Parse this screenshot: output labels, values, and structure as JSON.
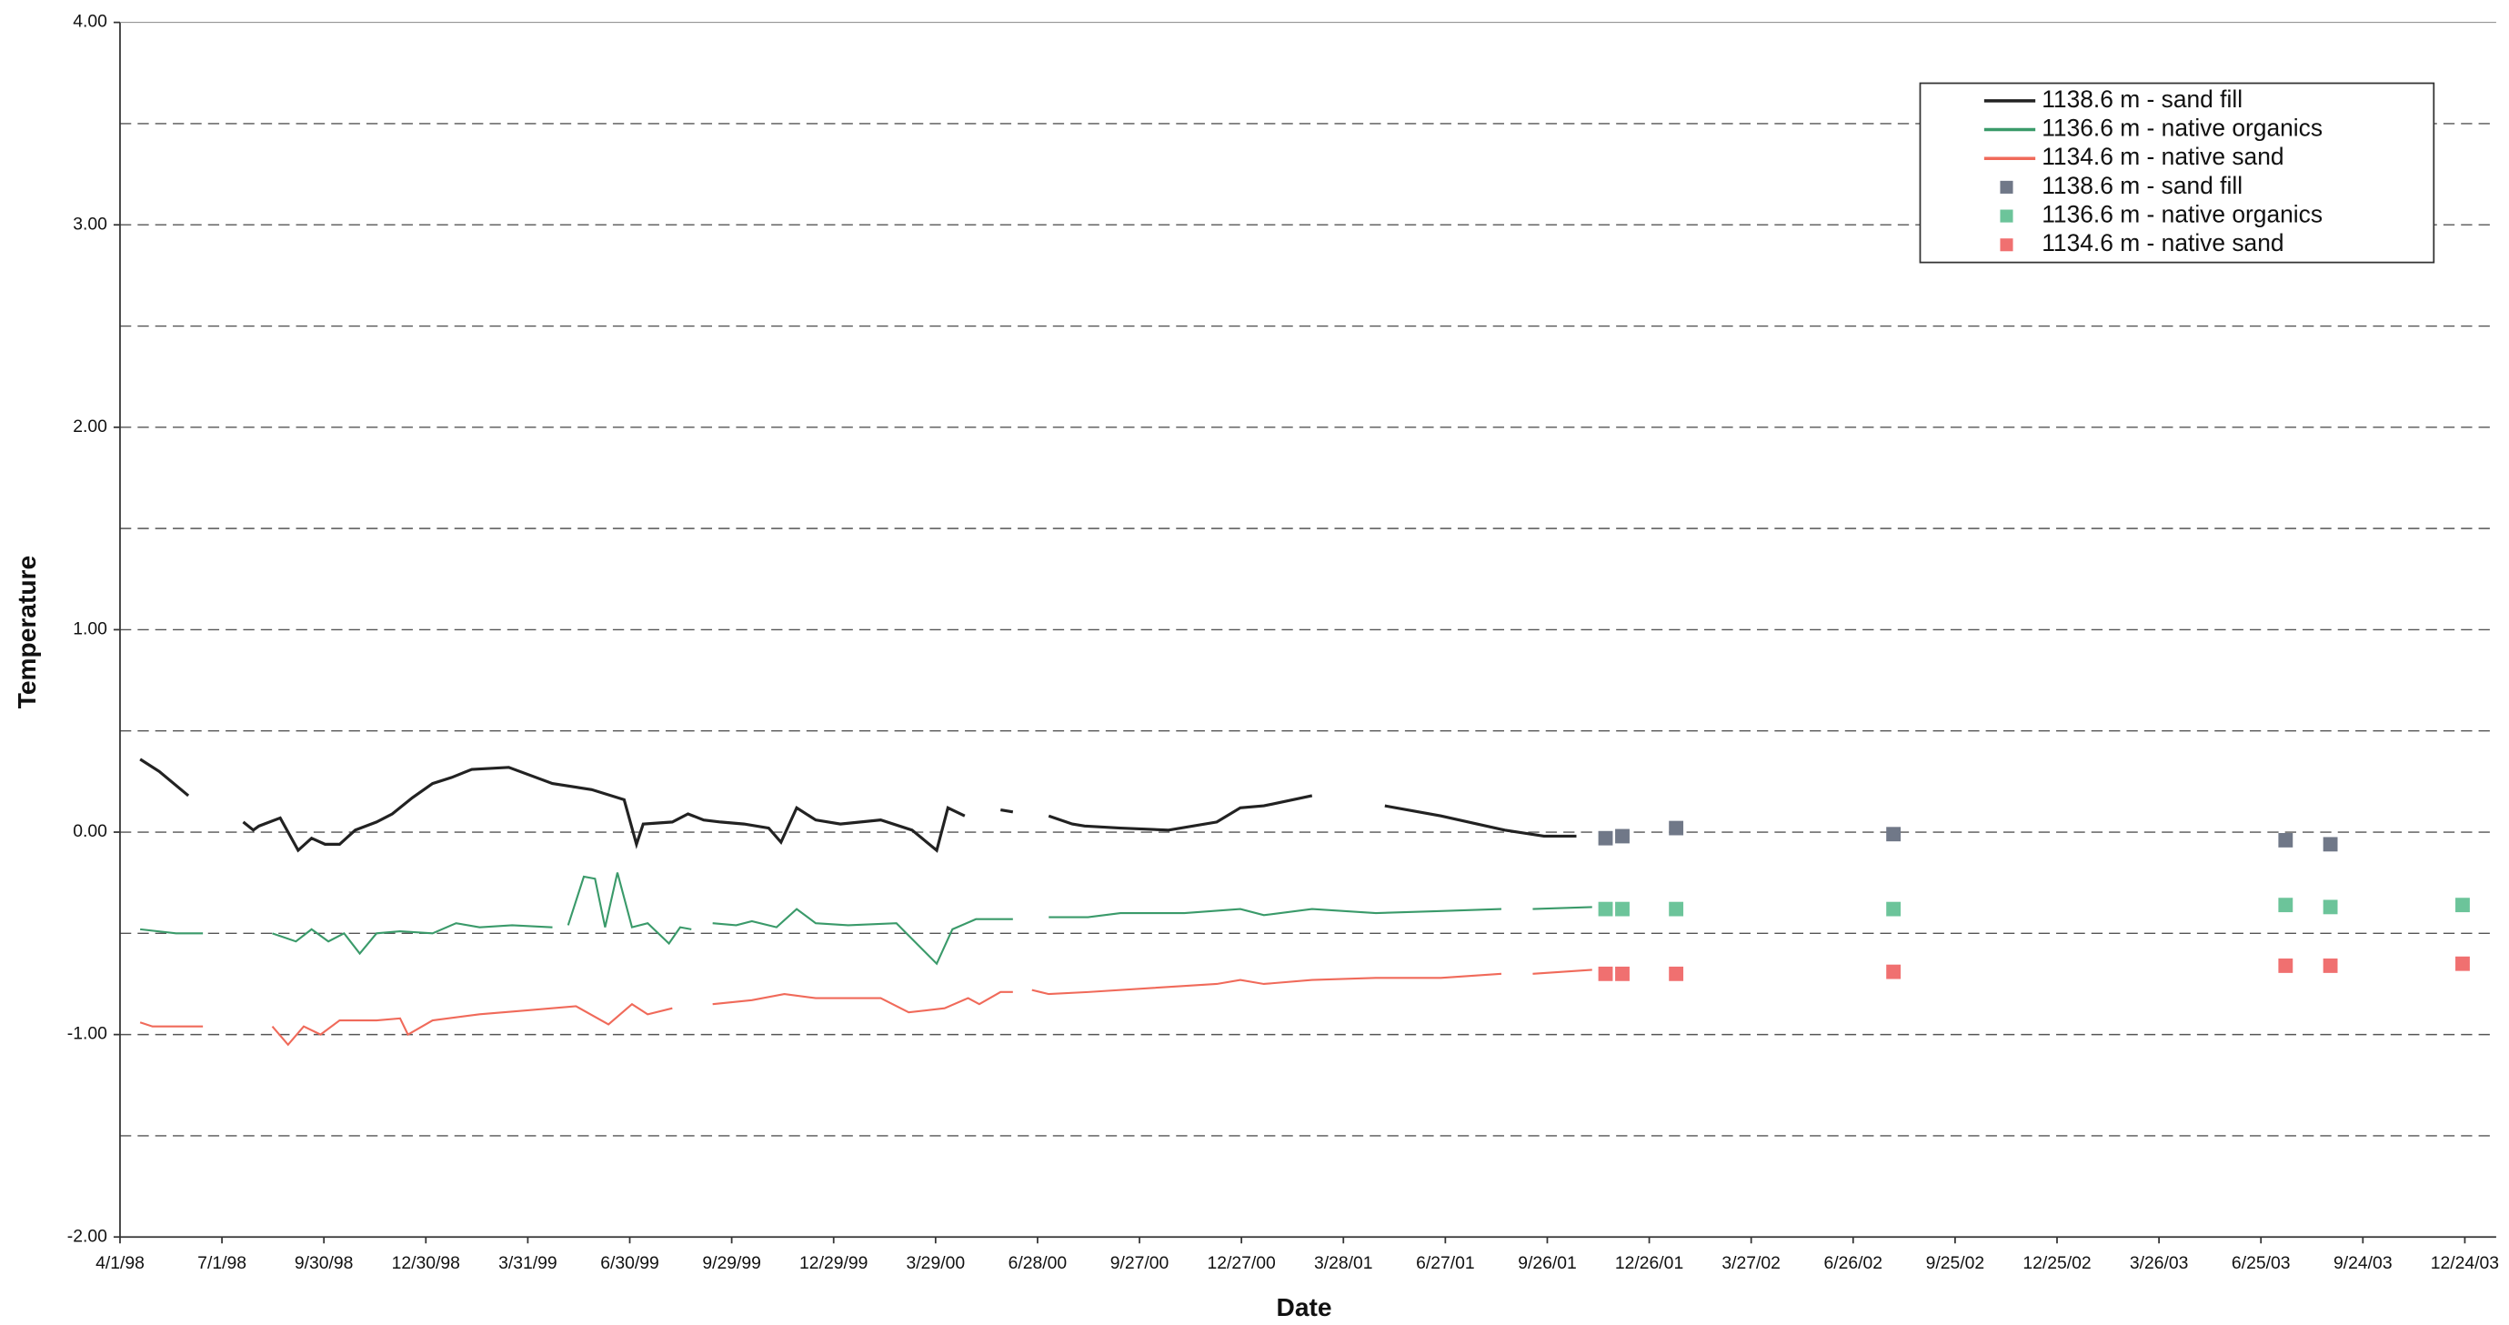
{
  "chart_data": {
    "type": "line",
    "x_label": "Date",
    "y_label": "Temperature",
    "legend": "top-right",
    "xlim": [
      "1998-04-01",
      "2004-01-21"
    ],
    "ylim": [
      -2,
      4
    ],
    "xticks": [
      {
        "value": "1998-04-01",
        "label": "4/1/98"
      },
      {
        "value": "1998-07-01",
        "label": "7/1/98"
      },
      {
        "value": "1998-09-30",
        "label": "9/30/98"
      },
      {
        "value": "1998-12-30",
        "label": "12/30/98"
      },
      {
        "value": "1999-03-31",
        "label": "3/31/99"
      },
      {
        "value": "1999-06-30",
        "label": "6/30/99"
      },
      {
        "value": "1999-09-29",
        "label": "9/29/99"
      },
      {
        "value": "1999-12-29",
        "label": "12/29/99"
      },
      {
        "value": "2000-03-29",
        "label": "3/29/00"
      },
      {
        "value": "2000-06-28",
        "label": "6/28/00"
      },
      {
        "value": "2000-09-27",
        "label": "9/27/00"
      },
      {
        "value": "2000-12-27",
        "label": "12/27/00"
      },
      {
        "value": "2001-03-28",
        "label": "3/28/01"
      },
      {
        "value": "2001-06-27",
        "label": "6/27/01"
      },
      {
        "value": "2001-09-26",
        "label": "9/26/01"
      },
      {
        "value": "2001-12-26",
        "label": "12/26/01"
      },
      {
        "value": "2002-03-27",
        "label": "3/27/02"
      },
      {
        "value": "2002-06-26",
        "label": "6/26/02"
      },
      {
        "value": "2002-09-25",
        "label": "9/25/02"
      },
      {
        "value": "2002-12-25",
        "label": "12/25/02"
      },
      {
        "value": "2003-03-26",
        "label": "3/26/03"
      },
      {
        "value": "2003-06-25",
        "label": "6/25/03"
      },
      {
        "value": "2003-09-24",
        "label": "9/24/03"
      },
      {
        "value": "2003-12-24",
        "label": "12/24/03"
      }
    ],
    "yticks": [
      {
        "value": -2,
        "label": "-2.00"
      },
      {
        "value": -1,
        "label": "-1.00"
      },
      {
        "value": 0,
        "label": "0.00"
      },
      {
        "value": 1,
        "label": "1.00"
      },
      {
        "value": 2,
        "label": "2.00"
      },
      {
        "value": 3,
        "label": "3.00"
      },
      {
        "value": 4,
        "label": "4.00"
      }
    ],
    "y_minor_ticks": [
      -1.5,
      -0.5,
      0.5,
      1.5,
      2.5,
      3.5
    ],
    "grid": true,
    "series": [
      {
        "name": "1138.6 m - sand fill",
        "type": "line",
        "color": "#222222",
        "x": [
          "1998-04-19",
          "1998-05-06",
          "1998-06-01",
          null,
          "1998-07-20",
          "1998-07-29",
          "1998-08-03",
          "1998-08-22",
          "1998-09-07",
          "1998-09-19",
          "1998-10-01",
          "1998-10-14",
          "1998-10-28",
          "1998-11-16",
          "1998-11-30",
          "1998-12-18",
          "1999-01-05",
          "1999-01-22",
          "1999-02-09",
          "1999-03-14",
          "1999-04-22",
          "1999-05-27",
          "1999-06-25",
          "1999-07-06",
          "1999-07-12",
          "1999-08-07",
          "1999-08-21",
          "1999-09-04",
          "1999-09-19",
          "1999-10-10",
          "1999-11-01",
          "1999-11-12",
          "1999-11-26",
          "1999-12-13",
          "2000-01-04",
          "2000-02-09",
          "2000-03-08",
          "2000-03-30",
          "2000-04-09",
          "2000-04-24",
          null,
          "2000-05-26",
          "2000-06-06",
          null,
          "2000-07-08",
          "2000-07-29",
          "2000-08-09",
          "2000-09-10",
          "2000-10-23",
          "2000-12-05",
          "2000-12-26",
          "2001-01-16",
          "2001-02-28",
          null,
          "2001-05-04",
          "2001-06-23",
          "2001-08-19",
          "2001-09-23",
          "2001-10-22"
        ],
        "values": [
          0.36,
          0.3,
          0.18,
          null,
          0.05,
          0.01,
          0.03,
          0.07,
          -0.09,
          -0.03,
          -0.06,
          -0.06,
          0.01,
          0.05,
          0.09,
          0.17,
          0.24,
          0.27,
          0.31,
          0.32,
          0.24,
          0.21,
          0.16,
          -0.06,
          0.04,
          0.05,
          0.09,
          0.06,
          0.05,
          0.04,
          0.02,
          -0.05,
          0.12,
          0.06,
          0.04,
          0.06,
          0.01,
          -0.09,
          0.12,
          0.08,
          null,
          0.11,
          0.1,
          null,
          0.08,
          0.04,
          0.03,
          0.02,
          0.01,
          0.05,
          0.12,
          0.13,
          0.18,
          null,
          0.13,
          0.08,
          0.01,
          -0.02,
          -0.02
        ]
      },
      {
        "name": "1136.6 m - native organics",
        "type": "line",
        "color": "#3a9a6a",
        "x": [
          "1998-04-19",
          "1998-05-21",
          "1998-06-14",
          null,
          "1998-08-15",
          "1998-09-05",
          "1998-09-19",
          "1998-10-04",
          "1998-10-18",
          "1998-11-01",
          "1998-11-16",
          "1998-12-07",
          "1999-01-05",
          "1999-01-26",
          "1999-02-16",
          "1999-03-17",
          "1999-04-22",
          null,
          "1999-05-06",
          "1999-05-20",
          "1999-05-30",
          "1999-06-08",
          "1999-06-19",
          "1999-07-02",
          "1999-07-16",
          "1999-08-04",
          "1999-08-14",
          "1999-08-24",
          null,
          "1999-09-12",
          "1999-10-03",
          "1999-10-17",
          "1999-11-08",
          "1999-11-26",
          "1999-12-13",
          "2000-01-11",
          "2000-02-23",
          "2000-03-30",
          "2000-04-13",
          "2000-05-04",
          "2000-06-06",
          null,
          "2000-07-08",
          "2000-08-12",
          "2000-09-10",
          "2000-11-06",
          "2000-12-26",
          "2001-01-16",
          "2001-02-28",
          "2001-04-26",
          "2001-06-23",
          "2001-08-16",
          null,
          "2001-09-13",
          "2001-11-05"
        ],
        "values": [
          -0.48,
          -0.5,
          -0.5,
          null,
          -0.5,
          -0.54,
          -0.48,
          -0.54,
          -0.5,
          -0.6,
          -0.5,
          -0.49,
          -0.5,
          -0.45,
          -0.47,
          -0.46,
          -0.47,
          null,
          -0.46,
          -0.22,
          -0.23,
          -0.47,
          -0.2,
          -0.47,
          -0.45,
          -0.55,
          -0.47,
          -0.48,
          null,
          -0.45,
          -0.46,
          -0.44,
          -0.47,
          -0.38,
          -0.45,
          -0.46,
          -0.45,
          -0.65,
          -0.48,
          -0.43,
          -0.43,
          null,
          -0.42,
          -0.42,
          -0.4,
          -0.4,
          -0.38,
          -0.41,
          -0.38,
          -0.4,
          -0.39,
          -0.38,
          null,
          -0.38,
          -0.37
        ]
      },
      {
        "name": "1134.6 m - native sand",
        "type": "line",
        "color": "#f06a5a",
        "x": [
          "1998-04-19",
          "1998-04-30",
          "1998-06-14",
          null,
          "1998-08-15",
          "1998-08-29",
          "1998-09-12",
          "1998-09-27",
          "1998-10-14",
          "1998-11-16",
          "1998-12-07",
          "1998-12-14",
          "1999-01-05",
          "1999-02-16",
          "1999-03-31",
          "1999-05-13",
          "1999-06-11",
          "1999-07-02",
          "1999-07-16",
          "1999-08-07",
          null,
          "1999-09-12",
          "1999-10-17",
          "1999-11-15",
          "1999-12-13",
          "2000-02-09",
          "2000-03-05",
          "2000-04-06",
          "2000-04-27",
          "2000-05-07",
          "2000-05-26",
          "2000-06-06",
          null,
          "2000-06-23",
          "2000-07-08",
          "2000-08-12",
          "2000-10-08",
          "2000-12-05",
          "2000-12-26",
          "2001-01-16",
          "2001-02-28",
          "2001-04-26",
          "2001-06-23",
          "2001-08-16",
          null,
          "2001-09-13",
          "2001-11-05"
        ],
        "values": [
          -0.94,
          -0.96,
          -0.96,
          null,
          -0.96,
          -1.05,
          -0.96,
          -1.0,
          -0.93,
          -0.93,
          -0.92,
          -1.0,
          -0.93,
          -0.9,
          -0.88,
          -0.86,
          -0.95,
          -0.85,
          -0.9,
          -0.87,
          null,
          -0.85,
          -0.83,
          -0.8,
          -0.82,
          -0.82,
          -0.89,
          -0.87,
          -0.82,
          -0.85,
          -0.79,
          -0.79,
          null,
          -0.78,
          -0.8,
          -0.79,
          -0.77,
          -0.75,
          -0.73,
          -0.75,
          -0.73,
          -0.72,
          -0.72,
          -0.7,
          null,
          -0.7,
          -0.68
        ]
      },
      {
        "name": "1138.6 m - sand fill",
        "type": "scatter",
        "color": "#707888",
        "x": [
          "2001-11-17",
          "2001-12-02",
          "2002-01-19",
          "2002-08-01",
          "2003-07-17",
          "2003-08-26"
        ],
        "values": [
          -0.03,
          -0.02,
          0.02,
          -0.01,
          -0.04,
          -0.06
        ]
      },
      {
        "name": "1136.6 m - native organics",
        "type": "scatter",
        "color": "#6cc49a",
        "x": [
          "2001-11-17",
          "2001-12-02",
          "2002-01-19",
          "2002-08-01",
          "2003-07-17",
          "2003-08-26",
          "2003-12-22"
        ],
        "values": [
          -0.38,
          -0.38,
          -0.38,
          -0.38,
          -0.36,
          -0.37,
          -0.36
        ]
      },
      {
        "name": "1134.6 m - native sand",
        "type": "scatter",
        "color": "#f07070",
        "x": [
          "2001-11-17",
          "2001-12-02",
          "2002-01-19",
          "2002-08-01",
          "2003-07-17",
          "2003-08-26",
          "2003-12-22"
        ],
        "values": [
          -0.7,
          -0.7,
          -0.7,
          -0.69,
          -0.66,
          -0.66,
          -0.65
        ]
      }
    ]
  }
}
